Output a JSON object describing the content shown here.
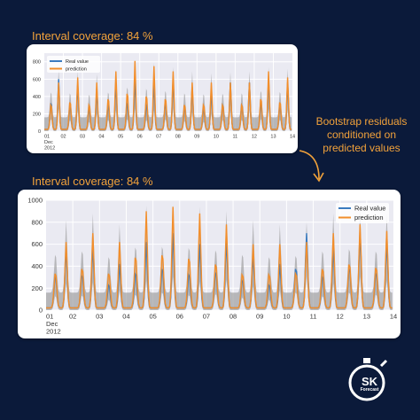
{
  "captions": {
    "top": "Interval coverage: 84 %",
    "bottom": "Interval coverage: 84 %"
  },
  "side_note": {
    "line1": "Bootstrap residuals",
    "line2": "conditioned on",
    "line3": "predicted values"
  },
  "logo": {
    "text": "SK",
    "sub": "Forecast",
    "icon": "stopwatch-icon"
  },
  "colors": {
    "background": "#0b1a3a",
    "accent": "#f2a23a",
    "real": "#3b7bbf",
    "prediction": "#f28e2b",
    "interval": "#9a9a9a",
    "plot_bg": "#eaeaf2"
  },
  "chart_data": [
    {
      "type": "line",
      "title": "",
      "xlabel": "",
      "ylabel": "",
      "ylim": [
        0,
        900
      ],
      "yticks": [
        0,
        200,
        400,
        600,
        800
      ],
      "xticks": [
        "01\nDec\n2012",
        "02",
        "03",
        "04",
        "05",
        "06",
        "07",
        "08",
        "09",
        "10",
        "11",
        "12",
        "13",
        "14"
      ],
      "x_range_days": [
        1,
        14
      ],
      "legend": "top-left",
      "grid": true,
      "daily_peaks": {
        "real": [
          600,
          540,
          470,
          560,
          600,
          560,
          600,
          510,
          470,
          560,
          560,
          600,
          560
        ],
        "prediction": [
          560,
          620,
          560,
          690,
          810,
          750,
          690,
          560,
          560,
          560,
          560,
          690,
          620
        ],
        "upper": [
          710,
          690,
          660,
          710,
          820,
          790,
          740,
          690,
          670,
          680,
          690,
          740,
          720
        ]
      },
      "series": [
        {
          "name": "Real value"
        },
        {
          "name": "prediction"
        }
      ]
    },
    {
      "type": "line",
      "title": "",
      "xlabel": "",
      "ylabel": "",
      "ylim": [
        0,
        1000
      ],
      "yticks": [
        0,
        200,
        400,
        600,
        800,
        1000
      ],
      "xticks": [
        "01\nDec\n2012",
        "02",
        "03",
        "04",
        "05",
        "06",
        "07",
        "08",
        "09",
        "10",
        "11",
        "12",
        "13",
        "14"
      ],
      "x_range_days": [
        1,
        14
      ],
      "legend": "top-right",
      "grid": true,
      "daily_peaks": {
        "real": [
          560,
          580,
          420,
          620,
          700,
          600,
          640,
          500,
          420,
          700,
          560,
          700,
          620
        ],
        "prediction": [
          620,
          700,
          620,
          900,
          940,
          880,
          780,
          600,
          600,
          620,
          700,
          780,
          720
        ],
        "upper": [
          820,
          880,
          780,
          950,
          960,
          940,
          900,
          820,
          780,
          800,
          880,
          920,
          880
        ]
      },
      "series": [
        {
          "name": "Real value"
        },
        {
          "name": "prediction"
        }
      ]
    }
  ]
}
